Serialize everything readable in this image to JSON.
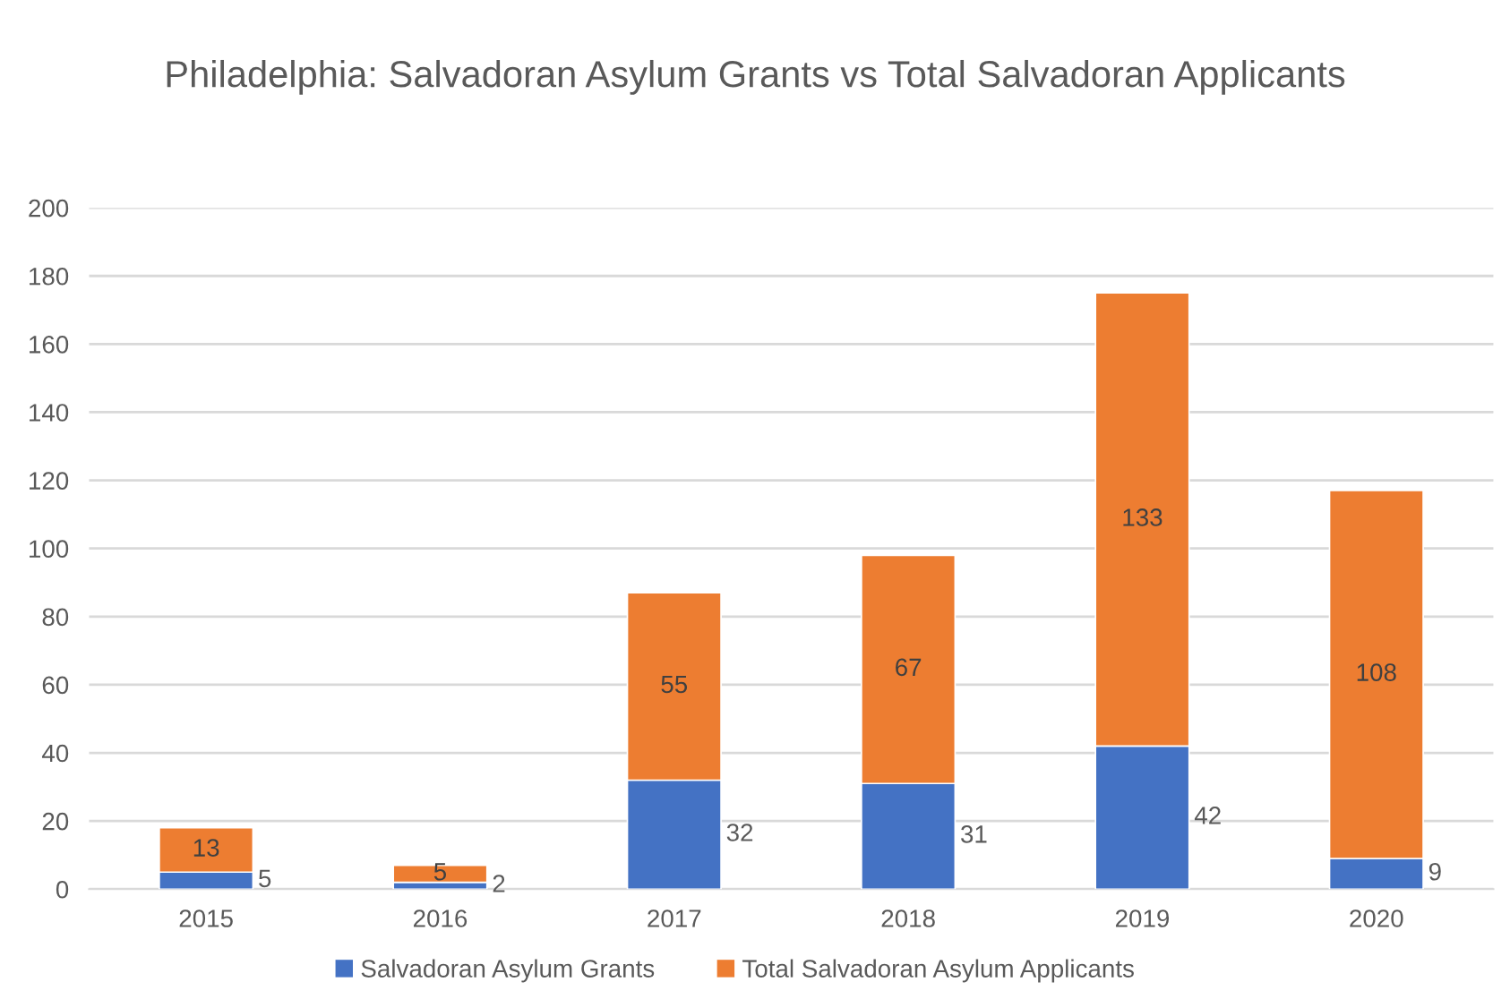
{
  "chart_data": {
    "type": "bar",
    "title": "Philadelphia: Salvadoran Asylum Grants vs Total Salvadoran Applicants",
    "categories": [
      "2015",
      "2016",
      "2017",
      "2018",
      "2019",
      "2020"
    ],
    "series": [
      {
        "name": "Salvadoran Asylum Grants",
        "color": "#4472c4",
        "values": [
          5,
          2,
          32,
          31,
          42,
          9
        ]
      },
      {
        "name": "Total Salvadoran Asylum Applicants",
        "color": "#ed7d31",
        "values": [
          13,
          5,
          55,
          67,
          133,
          108
        ]
      }
    ],
    "stacked": true,
    "data_labels": true,
    "ylim": [
      0,
      200
    ],
    "yticks": [
      0,
      20,
      40,
      60,
      80,
      100,
      120,
      140,
      160,
      180,
      200
    ],
    "grid": "y",
    "legend": "bottom"
  }
}
